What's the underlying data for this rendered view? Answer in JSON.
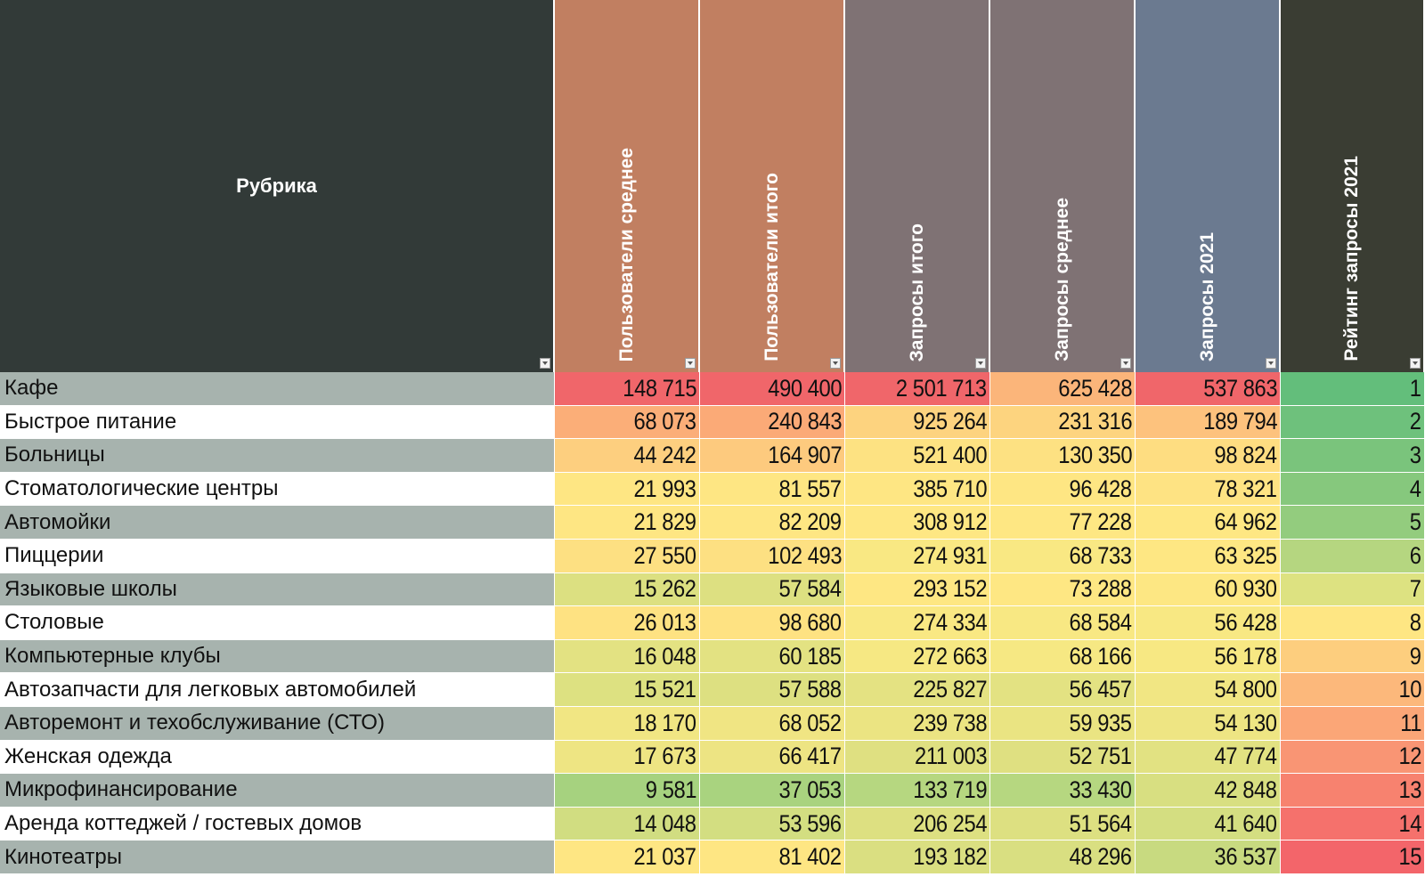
{
  "header": {
    "rubric": "Рубрика",
    "columns": [
      {
        "label": "Пользователи среднее",
        "color": "#c17f61"
      },
      {
        "label": "Пользователи итого",
        "color": "#c17f61"
      },
      {
        "label": "Запросы итого",
        "color": "#7f7274"
      },
      {
        "label": "Запросы среднее",
        "color": "#7f7274"
      },
      {
        "label": "Запросы 2021",
        "color": "#6b7a90"
      },
      {
        "label": "Рейтинг запросы 2021",
        "color": "#3a3d33"
      }
    ],
    "rubric_color": "#323a38"
  },
  "rows": [
    {
      "name": "Кафе",
      "values": [
        "148 715",
        "490 400",
        "2 501 713",
        "625 428",
        "537 863",
        "1"
      ],
      "colors": [
        "#f0666a",
        "#f0666a",
        "#f0666a",
        "#fbb57a",
        "#f0666a",
        "#63be7b"
      ]
    },
    {
      "name": "Быстрое питание",
      "values": [
        "68 073",
        "240 843",
        "925 264",
        "231 316",
        "189 794",
        "2"
      ],
      "colors": [
        "#fbae78",
        "#fbaa77",
        "#fdd37f",
        "#fdd47f",
        "#fdc27d",
        "#6ec17c"
      ]
    },
    {
      "name": "Больницы",
      "values": [
        "44 242",
        "164 907",
        "521 400",
        "130 350",
        "98 824",
        "3"
      ],
      "colors": [
        "#fdcf7f",
        "#fdca7e",
        "#fde282",
        "#fde182",
        "#fedd81",
        "#7ac47c"
      ]
    },
    {
      "name": "Стоматологические центры",
      "values": [
        "21 993",
        "81 557",
        "385 710",
        "96 428",
        "78 321",
        "4"
      ],
      "colors": [
        "#fee683",
        "#fee683",
        "#fee683",
        "#fee683",
        "#fee383",
        "#86c87d"
      ]
    },
    {
      "name": "Автомойки",
      "values": [
        "21 829",
        "82 209",
        "308 912",
        "77 228",
        "64 962",
        "5"
      ],
      "colors": [
        "#fee683",
        "#fee683",
        "#fee783",
        "#fee783",
        "#fee783",
        "#93cc7e"
      ]
    },
    {
      "name": "Пиццерии",
      "values": [
        "27 550",
        "102 493",
        "274 931",
        "68 733",
        "63 325",
        "6"
      ],
      "colors": [
        "#fde082",
        "#fde082",
        "#f9e883",
        "#f9e883",
        "#fee783",
        "#b5d680"
      ]
    },
    {
      "name": "Языковые школы",
      "values": [
        "15 262",
        "57 584",
        "293 152",
        "73 288",
        "60 930",
        "7"
      ],
      "colors": [
        "#dce081",
        "#dde081",
        "#fee783",
        "#fee783",
        "#fde783",
        "#dde281"
      ]
    },
    {
      "name": "Столовые",
      "values": [
        "26 013",
        "98 680",
        "274 334",
        "68 584",
        "56 428",
        "8"
      ],
      "colors": [
        "#fee282",
        "#fee282",
        "#f9e883",
        "#f8e883",
        "#f8e883",
        "#fee683"
      ]
    },
    {
      "name": "Компьютерные клубы",
      "values": [
        "16 048",
        "60 185",
        "272 663",
        "68 166",
        "56 178",
        "9"
      ],
      "colors": [
        "#e3e282",
        "#e3e282",
        "#f6e883",
        "#f6e883",
        "#f7e883",
        "#fdce7e"
      ]
    },
    {
      "name": "Автозапчасти для легковых автомобилей",
      "values": [
        "15 521",
        "57 588",
        "225 827",
        "56 457",
        "54 800",
        "10"
      ],
      "colors": [
        "#dde181",
        "#dde081",
        "#e4e282",
        "#e3e282",
        "#f1e683",
        "#fcb87b"
      ]
    },
    {
      "name": "Авторемонт и техобслуживание (СТО)",
      "values": [
        "18 170",
        "68 052",
        "239 738",
        "59 935",
        "54 130",
        "11"
      ],
      "colors": [
        "#f1e683",
        "#f0e583",
        "#ebe482",
        "#eae482",
        "#eee583",
        "#fba677"
      ]
    },
    {
      "name": "Женская одежда",
      "values": [
        "17 673",
        "66 417",
        "211 003",
        "52 751",
        "47 774",
        "12"
      ],
      "colors": [
        "#eee583",
        "#ede483",
        "#dfe081",
        "#dfe081",
        "#e2e282",
        "#f99574"
      ]
    },
    {
      "name": "Микрофинансирование",
      "values": [
        "9 581",
        "37 053",
        "133 719",
        "33 430",
        "42 848",
        "13"
      ],
      "colors": [
        "#a6d27f",
        "#a9d37f",
        "#b6d780",
        "#b6d780",
        "#d8df81",
        "#f7826f"
      ]
    },
    {
      "name": "Аренда коттеджей / гостевых домов",
      "values": [
        "14 048",
        "53 596",
        "206 254",
        "51 564",
        "41 640",
        "14"
      ],
      "colors": [
        "#d1dd81",
        "#d3de81",
        "#dde081",
        "#dde081",
        "#d4de81",
        "#f5716c"
      ]
    },
    {
      "name": "Кинотеатры",
      "values": [
        "21 037",
        "81 402",
        "193 182",
        "48 296",
        "36 537",
        "15"
      ],
      "colors": [
        "#fee683",
        "#fee683",
        "#dadf81",
        "#d9df81",
        "#c8da80",
        "#f3656a"
      ]
    }
  ],
  "row_band_colors": [
    "#a7b3ae",
    "#ffffff"
  ]
}
